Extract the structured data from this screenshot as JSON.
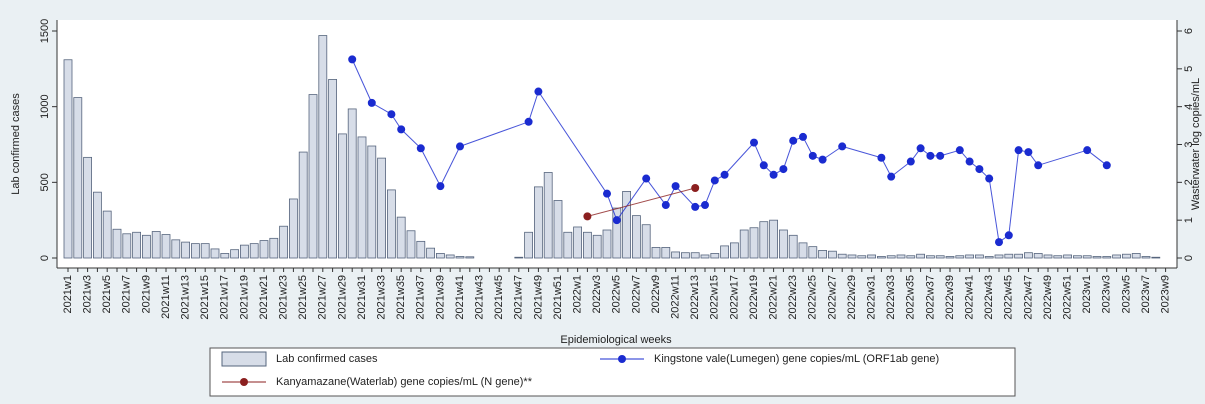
{
  "chart_data": {
    "type": "bar",
    "x_label": "Epidemiological weeks",
    "y_label": "Lab confirmed cases",
    "y2_label": "Wasterwater log copies/mL",
    "categories": [
      "2021w1",
      null,
      "2021w3",
      null,
      "2021w5",
      null,
      "2021w7",
      null,
      "2021w9",
      null,
      "2021w11",
      null,
      "2021w13",
      null,
      "2021w15",
      null,
      "2021w17",
      null,
      "2021w19",
      null,
      "2021w21",
      null,
      "2021w23",
      null,
      "2021w25",
      null,
      "2021w27",
      null,
      "2021w29",
      null,
      "2021w31",
      null,
      "2021w33",
      null,
      "2021w35",
      null,
      "2021w37",
      null,
      "2021w39",
      null,
      "2021w41",
      null,
      "2021w43",
      null,
      "2021w45",
      null,
      "2021w47",
      null,
      "2021w49",
      null,
      "2021w51",
      null,
      "2022w1",
      null,
      "2022w3",
      null,
      "2022w5",
      null,
      "2022w7",
      null,
      "2022w9",
      null,
      "2022w11",
      null,
      "2022w13",
      null,
      "2022w15",
      null,
      "2022w17",
      null,
      "2022w19",
      null,
      "2022w21",
      null,
      "2022w23",
      null,
      "2022w25",
      null,
      "2022w27",
      null,
      "2022w29",
      null,
      "2022w31",
      null,
      "2022w33",
      null,
      "2022w35",
      null,
      "2022w37",
      null,
      "2022w39",
      null,
      "2022w41",
      null,
      "2022w43",
      null,
      "2022w45",
      null,
      "2022w47",
      null,
      "2022w49",
      null,
      "2022w51",
      null,
      "2023w1",
      null,
      "2023w3",
      null,
      "2023w5",
      null,
      "2023w7",
      null,
      "2023w9"
    ],
    "series": [
      {
        "name": "Lab confirmed cases",
        "type": "bar",
        "color": "#d7dde8",
        "values": [
          1310,
          1060,
          665,
          435,
          310,
          190,
          160,
          170,
          150,
          175,
          155,
          120,
          105,
          95,
          95,
          60,
          30,
          55,
          85,
          95,
          115,
          130,
          210,
          390,
          700,
          1080,
          1470,
          1180,
          820,
          985,
          800,
          740,
          660,
          450,
          270,
          180,
          110,
          65,
          30,
          20,
          10,
          8,
          0,
          0,
          0,
          0,
          5,
          170,
          470,
          565,
          380,
          170,
          205,
          170,
          150,
          185,
          330,
          440,
          280,
          220,
          70,
          70,
          40,
          35,
          35,
          20,
          30,
          80,
          100,
          185,
          200,
          240,
          250,
          185,
          150,
          100,
          75,
          50,
          45,
          25,
          20,
          15,
          20,
          10,
          15,
          20,
          15,
          25,
          15,
          15,
          10,
          15,
          20,
          20,
          10,
          20,
          25,
          25,
          35,
          30,
          20,
          15,
          20,
          15,
          15,
          10,
          10,
          20,
          25,
          30,
          10,
          5,
          0
        ]
      },
      {
        "name": "Kingstone vale(Lumegen) gene copies/mL (ORF1ab gene)",
        "type": "line",
        "axis": "y2",
        "color": "#1a2bd0",
        "values": [
          null,
          null,
          null,
          null,
          null,
          null,
          null,
          null,
          null,
          null,
          null,
          null,
          null,
          null,
          null,
          null,
          null,
          null,
          null,
          null,
          null,
          null,
          null,
          null,
          null,
          null,
          null,
          null,
          null,
          5.25,
          null,
          4.1,
          null,
          3.8,
          3.4,
          null,
          2.9,
          null,
          1.9,
          null,
          2.95,
          null,
          null,
          null,
          null,
          null,
          null,
          3.6,
          4.4,
          null,
          null,
          null,
          null,
          null,
          null,
          1.7,
          1.0,
          null,
          null,
          2.1,
          null,
          1.4,
          1.9,
          null,
          1.35,
          1.4,
          2.05,
          2.2,
          null,
          null,
          3.05,
          2.45,
          2.2,
          2.35,
          3.1,
          3.2,
          2.7,
          2.6,
          null,
          2.95,
          null,
          null,
          null,
          2.65,
          2.15,
          null,
          2.55,
          2.9,
          2.7,
          2.7,
          null,
          2.85,
          2.55,
          2.35,
          2.1,
          0.42,
          0.6,
          2.85,
          2.8,
          2.45,
          null,
          null,
          null,
          null,
          2.85,
          null,
          2.45,
          null,
          null,
          null,
          null,
          null,
          null
        ]
      },
      {
        "name": "Kanyamazane(Waterlab) gene copies/mL (N gene)**",
        "type": "line",
        "axis": "y2",
        "color": "#8b1f1f",
        "values": [
          null,
          null,
          null,
          null,
          null,
          null,
          null,
          null,
          null,
          null,
          null,
          null,
          null,
          null,
          null,
          null,
          null,
          null,
          null,
          null,
          null,
          null,
          null,
          null,
          null,
          null,
          null,
          null,
          null,
          null,
          null,
          null,
          null,
          null,
          null,
          null,
          null,
          null,
          null,
          null,
          null,
          null,
          null,
          null,
          null,
          null,
          null,
          null,
          null,
          null,
          null,
          null,
          null,
          1.1,
          null,
          null,
          null,
          null,
          null,
          null,
          null,
          null,
          null,
          null,
          1.85,
          null,
          null,
          null,
          null,
          null,
          null,
          null,
          null,
          null,
          null,
          null,
          null,
          null,
          null,
          null,
          null,
          null,
          null,
          null,
          null,
          null,
          null,
          null,
          null,
          null,
          null,
          null,
          null,
          null,
          null,
          null,
          null,
          null,
          null,
          null,
          null,
          null,
          null,
          null,
          null,
          null,
          null,
          null,
          null,
          null,
          null,
          null,
          null
        ]
      }
    ],
    "ylim": [
      0,
      1500
    ],
    "yticks": [
      0,
      500,
      1000,
      1500
    ],
    "y2lim": [
      0,
      6
    ],
    "y2ticks": [
      0,
      1,
      2,
      3,
      4,
      5,
      6
    ],
    "grid": false
  }
}
